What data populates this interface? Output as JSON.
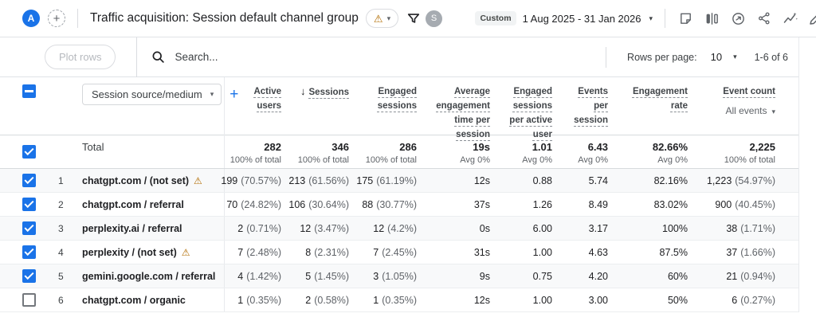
{
  "header": {
    "logo_letter": "A",
    "add_button": "+",
    "title": "Traffic acquisition: Session default channel group",
    "user_avatar_letter": "S",
    "date_mode_badge": "Custom",
    "date_range": "1 Aug 2025 - 31 Jan 2026",
    "action_icons": [
      "note-icon",
      "comparison-icon",
      "clock-insights-icon",
      "share-icon",
      "insights-icon",
      "edit-icon-partial"
    ]
  },
  "toolbar": {
    "plot_rows_label": "Plot rows",
    "search_placeholder": "Search...",
    "rows_per_page_label": "Rows per page:",
    "rows_per_page_value": "10",
    "page_info": "1-6 of 6"
  },
  "table": {
    "dimension_selector_value": "Session source/medium",
    "add_dimension_label": "+",
    "columns": [
      {
        "label": "Active users"
      },
      {
        "label": "Sessions",
        "sorted": true
      },
      {
        "label": "Engaged sessions"
      },
      {
        "label": "Average engagement time per session"
      },
      {
        "label": "Engaged sessions per active user"
      },
      {
        "label": "Events per session"
      },
      {
        "label": "Engagement rate"
      },
      {
        "label": "Event count",
        "filter_value": "All events"
      }
    ],
    "total_row": {
      "label": "Total",
      "cells": [
        {
          "value": "282",
          "sub": "100% of total"
        },
        {
          "value": "346",
          "sub": "100% of total"
        },
        {
          "value": "286",
          "sub": "100% of total"
        },
        {
          "value": "19s",
          "sub": "Avg 0%"
        },
        {
          "value": "1.01",
          "sub": "Avg 0%"
        },
        {
          "value": "6.43",
          "sub": "Avg 0%"
        },
        {
          "value": "82.66%",
          "sub": "Avg 0%"
        },
        {
          "value": "2,225",
          "sub": "100% of total"
        }
      ]
    },
    "rows": [
      {
        "num": "1",
        "checked": true,
        "warning": true,
        "source": "chatgpt.com / (not set)",
        "cells": [
          {
            "value": "199",
            "pct": "(70.57%)"
          },
          {
            "value": "213",
            "pct": "(61.56%)"
          },
          {
            "value": "175",
            "pct": "(61.19%)"
          },
          {
            "value": "12s"
          },
          {
            "value": "0.88"
          },
          {
            "value": "5.74"
          },
          {
            "value": "82.16%"
          },
          {
            "value": "1,223",
            "pct": "(54.97%)"
          }
        ]
      },
      {
        "num": "2",
        "checked": true,
        "warning": false,
        "source": "chatgpt.com / referral",
        "cells": [
          {
            "value": "70",
            "pct": "(24.82%)"
          },
          {
            "value": "106",
            "pct": "(30.64%)"
          },
          {
            "value": "88",
            "pct": "(30.77%)"
          },
          {
            "value": "37s"
          },
          {
            "value": "1.26"
          },
          {
            "value": "8.49"
          },
          {
            "value": "83.02%"
          },
          {
            "value": "900",
            "pct": "(40.45%)"
          }
        ]
      },
      {
        "num": "3",
        "checked": true,
        "warning": false,
        "source": "perplexity.ai / referral",
        "cells": [
          {
            "value": "2",
            "pct": "(0.71%)"
          },
          {
            "value": "12",
            "pct": "(3.47%)"
          },
          {
            "value": "12",
            "pct": "(4.2%)"
          },
          {
            "value": "0s"
          },
          {
            "value": "6.00"
          },
          {
            "value": "3.17"
          },
          {
            "value": "100%"
          },
          {
            "value": "38",
            "pct": "(1.71%)"
          }
        ]
      },
      {
        "num": "4",
        "checked": true,
        "warning": true,
        "source": "perplexity / (not set)",
        "cells": [
          {
            "value": "7",
            "pct": "(2.48%)"
          },
          {
            "value": "8",
            "pct": "(2.31%)"
          },
          {
            "value": "7",
            "pct": "(2.45%)"
          },
          {
            "value": "31s"
          },
          {
            "value": "1.00"
          },
          {
            "value": "4.63"
          },
          {
            "value": "87.5%"
          },
          {
            "value": "37",
            "pct": "(1.66%)"
          }
        ]
      },
      {
        "num": "5",
        "checked": true,
        "warning": false,
        "source": "gemini.google.com / referral",
        "cells": [
          {
            "value": "4",
            "pct": "(1.42%)"
          },
          {
            "value": "5",
            "pct": "(1.45%)"
          },
          {
            "value": "3",
            "pct": "(1.05%)"
          },
          {
            "value": "9s"
          },
          {
            "value": "0.75"
          },
          {
            "value": "4.20"
          },
          {
            "value": "60%"
          },
          {
            "value": "21",
            "pct": "(0.94%)"
          }
        ]
      },
      {
        "num": "6",
        "checked": false,
        "warning": false,
        "source": "chatgpt.com / organic",
        "cells": [
          {
            "value": "1",
            "pct": "(0.35%)"
          },
          {
            "value": "2",
            "pct": "(0.58%)"
          },
          {
            "value": "1",
            "pct": "(0.35%)"
          },
          {
            "value": "12s"
          },
          {
            "value": "1.00"
          },
          {
            "value": "3.00"
          },
          {
            "value": "50%"
          },
          {
            "value": "6",
            "pct": "(0.27%)"
          }
        ]
      }
    ]
  },
  "colors": {
    "accent_blue": "#1a73e8",
    "warning_amber": "#b26c00",
    "row_stripe": "#f8f9fa"
  }
}
